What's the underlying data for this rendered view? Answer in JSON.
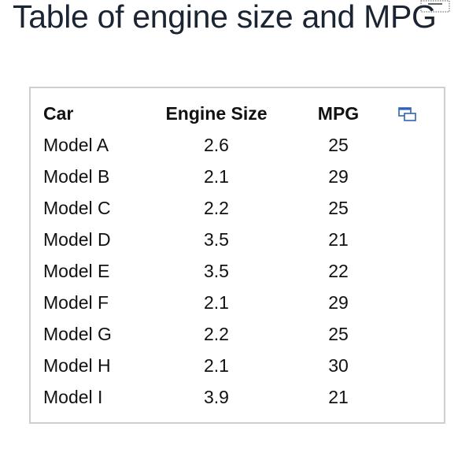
{
  "page": {
    "title": "Table of engine size and MPG"
  },
  "table": {
    "headers": [
      "Car",
      "Engine Size",
      "MPG"
    ],
    "rows": [
      [
        "Model A",
        "2.6",
        "25"
      ],
      [
        "Model B",
        "2.1",
        "29"
      ],
      [
        "Model C",
        "2.2",
        "25"
      ],
      [
        "Model D",
        "3.5",
        "21"
      ],
      [
        "Model E",
        "3.5",
        "22"
      ],
      [
        "Model F",
        "2.1",
        "29"
      ],
      [
        "Model G",
        "2.2",
        "25"
      ],
      [
        "Model H",
        "2.1",
        "30"
      ],
      [
        "Model I",
        "3.9",
        "21"
      ]
    ]
  },
  "icons": {
    "expand": "expand-window-icon",
    "title_widget": "dotted-selection-icon"
  },
  "colors": {
    "title": "#1b2433",
    "panel_border": "#cfcfcf",
    "icon_accent": "#2f63b8"
  }
}
